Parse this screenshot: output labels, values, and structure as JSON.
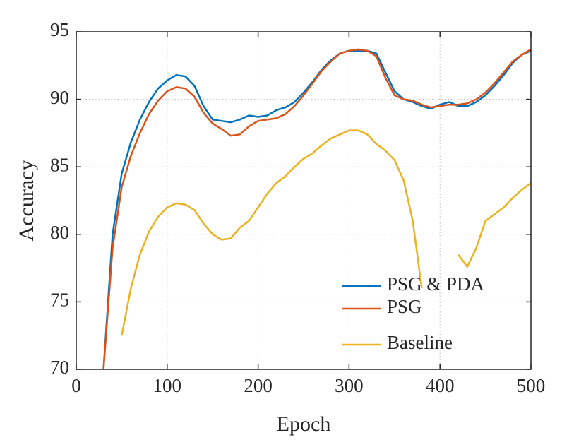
{
  "chart_data": {
    "type": "line",
    "x_label": "Epoch",
    "y_label": "Accuracy",
    "x": [
      30,
      40,
      50,
      60,
      70,
      80,
      90,
      100,
      110,
      120,
      130,
      140,
      150,
      160,
      170,
      180,
      190,
      200,
      210,
      220,
      230,
      240,
      250,
      260,
      270,
      280,
      290,
      300,
      310,
      320,
      330,
      340,
      350,
      360,
      370,
      380,
      390,
      400,
      410,
      420,
      430,
      440,
      450,
      460,
      470,
      480,
      490,
      500
    ],
    "series": [
      {
        "name": "PSG & PDA",
        "color": "#0072bd",
        "values": [
          70,
          80,
          84.5,
          86.8,
          88.5,
          89.8,
          90.8,
          91.4,
          91.8,
          91.7,
          91,
          89.5,
          88.5,
          88.4,
          88.3,
          88.5,
          88.8,
          88.7,
          88.8,
          89.2,
          89.4,
          89.8,
          90.5,
          91.3,
          92.2,
          92.9,
          93.4,
          93.6,
          93.6,
          93.6,
          93.4,
          92,
          90.6,
          90,
          89.8,
          89.5,
          89.3,
          89.6,
          89.8,
          89.5,
          89.5,
          89.8,
          90.3,
          91,
          91.8,
          92.7,
          93.3,
          93.6
        ]
      },
      {
        "name": "PSG",
        "color": "#d95319",
        "values": [
          70,
          79,
          83.5,
          85.8,
          87.5,
          88.9,
          89.9,
          90.6,
          90.9,
          90.8,
          90.2,
          89,
          88.2,
          87.8,
          87.3,
          87.4,
          88,
          88.4,
          88.5,
          88.6,
          88.9,
          89.5,
          90.3,
          91.2,
          92.1,
          92.8,
          93.4,
          93.6,
          93.7,
          93.6,
          93.2,
          91.6,
          90.3,
          90,
          89.9,
          89.6,
          89.4,
          89.5,
          89.6,
          89.6,
          89.7,
          90,
          90.5,
          91.2,
          92,
          92.8,
          93.3,
          93.7
        ]
      },
      {
        "name": "Baseline",
        "color": "#edb120",
        "values": [
          null,
          null,
          72.5,
          76,
          78.5,
          80.2,
          81.3,
          82,
          82.3,
          82.2,
          81.8,
          80.8,
          80,
          79.6,
          79.7,
          80.5,
          81,
          82,
          83,
          83.8,
          84.3,
          85,
          85.6,
          86,
          86.6,
          87.1,
          87.4,
          87.7,
          87.7,
          87.4,
          86.7,
          86.2,
          85.5,
          84,
          81,
          76,
          null,
          null,
          null,
          78.5,
          77.6,
          79,
          81,
          81.5,
          82,
          82.7,
          83.3,
          83.8
        ]
      }
    ],
    "xlim": [
      0,
      500
    ],
    "xticks": [
      0,
      100,
      200,
      300,
      400,
      500
    ],
    "ylim": [
      70,
      95
    ],
    "yticks": [
      70,
      75,
      80,
      85,
      90,
      95
    ],
    "grid": true,
    "legend": "lower right"
  }
}
